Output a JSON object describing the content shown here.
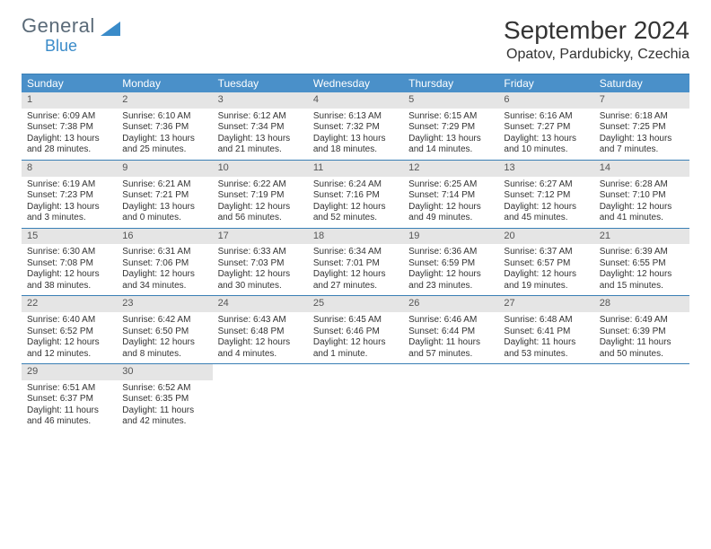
{
  "brand": {
    "line1": "General",
    "line2": "Blue",
    "accent": "#3a8bc9",
    "muted": "#5a6a78"
  },
  "title": "September 2024",
  "location": "Opatov, Pardubicky, Czechia",
  "colors": {
    "header_bar": "#4a90c9",
    "header_border": "#3a7fb5",
    "daynum_bg": "#e5e5e5",
    "daynum_text": "#555555",
    "body_text": "#333333",
    "background": "#ffffff"
  },
  "typography": {
    "title_fontsize": 28,
    "location_fontsize": 16,
    "dow_fontsize": 12,
    "cell_fontsize": 10
  },
  "dow": [
    "Sunday",
    "Monday",
    "Tuesday",
    "Wednesday",
    "Thursday",
    "Friday",
    "Saturday"
  ],
  "days": [
    {
      "n": 1,
      "sunrise": "6:09 AM",
      "sunset": "7:38 PM",
      "daylight": "13 hours and 28 minutes."
    },
    {
      "n": 2,
      "sunrise": "6:10 AM",
      "sunset": "7:36 PM",
      "daylight": "13 hours and 25 minutes."
    },
    {
      "n": 3,
      "sunrise": "6:12 AM",
      "sunset": "7:34 PM",
      "daylight": "13 hours and 21 minutes."
    },
    {
      "n": 4,
      "sunrise": "6:13 AM",
      "sunset": "7:32 PM",
      "daylight": "13 hours and 18 minutes."
    },
    {
      "n": 5,
      "sunrise": "6:15 AM",
      "sunset": "7:29 PM",
      "daylight": "13 hours and 14 minutes."
    },
    {
      "n": 6,
      "sunrise": "6:16 AM",
      "sunset": "7:27 PM",
      "daylight": "13 hours and 10 minutes."
    },
    {
      "n": 7,
      "sunrise": "6:18 AM",
      "sunset": "7:25 PM",
      "daylight": "13 hours and 7 minutes."
    },
    {
      "n": 8,
      "sunrise": "6:19 AM",
      "sunset": "7:23 PM",
      "daylight": "13 hours and 3 minutes."
    },
    {
      "n": 9,
      "sunrise": "6:21 AM",
      "sunset": "7:21 PM",
      "daylight": "13 hours and 0 minutes."
    },
    {
      "n": 10,
      "sunrise": "6:22 AM",
      "sunset": "7:19 PM",
      "daylight": "12 hours and 56 minutes."
    },
    {
      "n": 11,
      "sunrise": "6:24 AM",
      "sunset": "7:16 PM",
      "daylight": "12 hours and 52 minutes."
    },
    {
      "n": 12,
      "sunrise": "6:25 AM",
      "sunset": "7:14 PM",
      "daylight": "12 hours and 49 minutes."
    },
    {
      "n": 13,
      "sunrise": "6:27 AM",
      "sunset": "7:12 PM",
      "daylight": "12 hours and 45 minutes."
    },
    {
      "n": 14,
      "sunrise": "6:28 AM",
      "sunset": "7:10 PM",
      "daylight": "12 hours and 41 minutes."
    },
    {
      "n": 15,
      "sunrise": "6:30 AM",
      "sunset": "7:08 PM",
      "daylight": "12 hours and 38 minutes."
    },
    {
      "n": 16,
      "sunrise": "6:31 AM",
      "sunset": "7:06 PM",
      "daylight": "12 hours and 34 minutes."
    },
    {
      "n": 17,
      "sunrise": "6:33 AM",
      "sunset": "7:03 PM",
      "daylight": "12 hours and 30 minutes."
    },
    {
      "n": 18,
      "sunrise": "6:34 AM",
      "sunset": "7:01 PM",
      "daylight": "12 hours and 27 minutes."
    },
    {
      "n": 19,
      "sunrise": "6:36 AM",
      "sunset": "6:59 PM",
      "daylight": "12 hours and 23 minutes."
    },
    {
      "n": 20,
      "sunrise": "6:37 AM",
      "sunset": "6:57 PM",
      "daylight": "12 hours and 19 minutes."
    },
    {
      "n": 21,
      "sunrise": "6:39 AM",
      "sunset": "6:55 PM",
      "daylight": "12 hours and 15 minutes."
    },
    {
      "n": 22,
      "sunrise": "6:40 AM",
      "sunset": "6:52 PM",
      "daylight": "12 hours and 12 minutes."
    },
    {
      "n": 23,
      "sunrise": "6:42 AM",
      "sunset": "6:50 PM",
      "daylight": "12 hours and 8 minutes."
    },
    {
      "n": 24,
      "sunrise": "6:43 AM",
      "sunset": "6:48 PM",
      "daylight": "12 hours and 4 minutes."
    },
    {
      "n": 25,
      "sunrise": "6:45 AM",
      "sunset": "6:46 PM",
      "daylight": "12 hours and 1 minute."
    },
    {
      "n": 26,
      "sunrise": "6:46 AM",
      "sunset": "6:44 PM",
      "daylight": "11 hours and 57 minutes."
    },
    {
      "n": 27,
      "sunrise": "6:48 AM",
      "sunset": "6:41 PM",
      "daylight": "11 hours and 53 minutes."
    },
    {
      "n": 28,
      "sunrise": "6:49 AM",
      "sunset": "6:39 PM",
      "daylight": "11 hours and 50 minutes."
    },
    {
      "n": 29,
      "sunrise": "6:51 AM",
      "sunset": "6:37 PM",
      "daylight": "11 hours and 46 minutes."
    },
    {
      "n": 30,
      "sunrise": "6:52 AM",
      "sunset": "6:35 PM",
      "daylight": "11 hours and 42 minutes."
    }
  ],
  "labels": {
    "sunrise": "Sunrise:",
    "sunset": "Sunset:",
    "daylight": "Daylight:"
  },
  "layout": {
    "columns": 7,
    "rows": 5,
    "first_day_column": 0
  }
}
